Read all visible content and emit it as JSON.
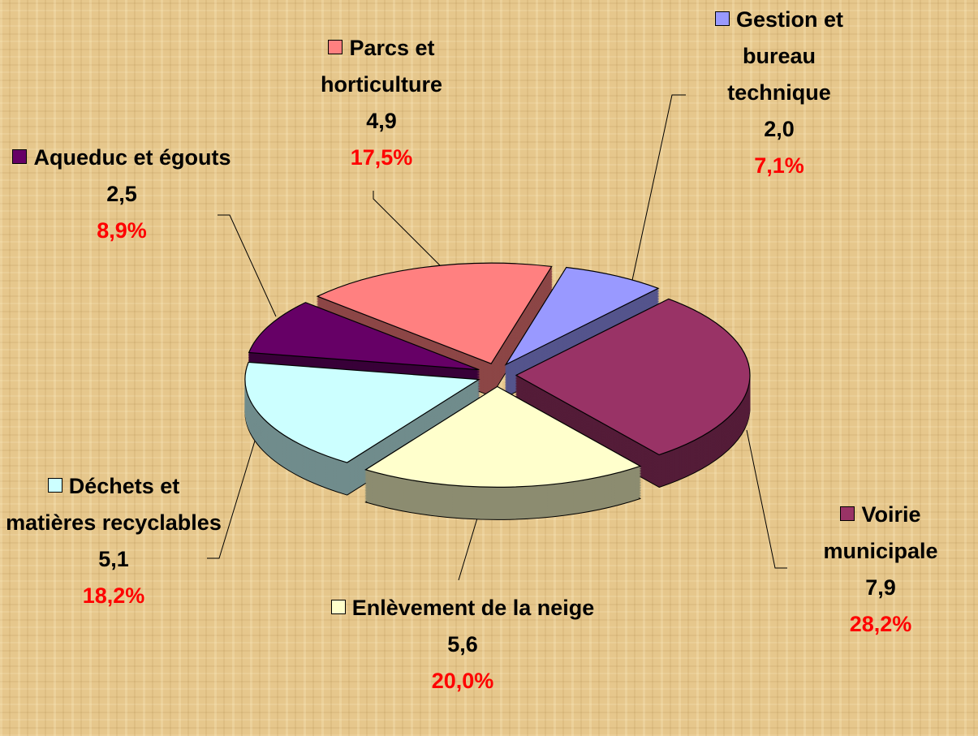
{
  "chart_data": {
    "type": "pie",
    "categories": [
      "Gestion et bureau technique",
      "Voirie municipale",
      "Enlèvement de la neige",
      "Déchets et matières recyclables",
      "Aqueduc et égouts",
      "Parcs et horticulture"
    ],
    "values": [
      2.0,
      7.9,
      5.6,
      5.1,
      2.5,
      4.9
    ],
    "value_labels": [
      "2,0",
      "7,9",
      "5,6",
      "5,1",
      "2,5",
      "4,9"
    ],
    "percent_labels": [
      "7,1%",
      "28,2%",
      "20,0%",
      "18,2%",
      "8,9%",
      "17,5%"
    ],
    "colors": [
      "#9999FF",
      "#993366",
      "#FFFFCC",
      "#CCFFFF",
      "#660066",
      "#FF8080"
    ]
  }
}
